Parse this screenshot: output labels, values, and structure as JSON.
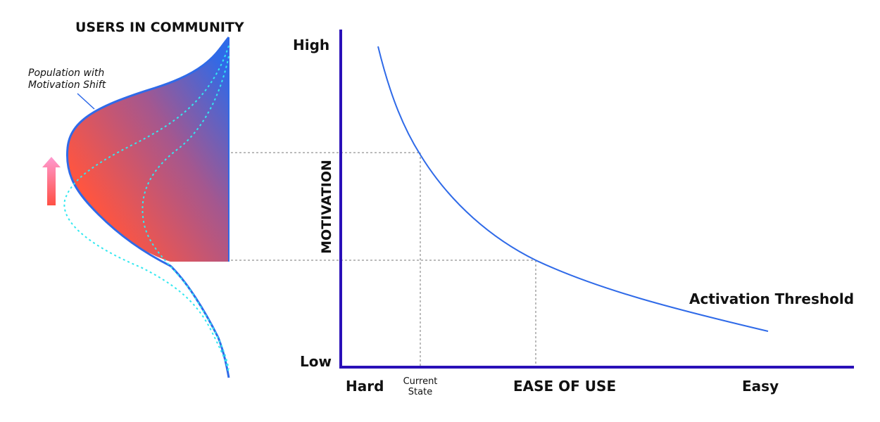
{
  "left_panel": {
    "title": "USERS IN COMMUNITY",
    "annotation_line1": "Population with",
    "annotation_line2": "Motivation Shift"
  },
  "chart": {
    "y_high_label": "High",
    "y_low_label": "Low",
    "y_axis_label": "MOTIVATION",
    "x_hard_label": "Hard",
    "x_easy_label": "Easy",
    "x_axis_label": "EASE OF USE",
    "current_state_line1": "Current",
    "current_state_line2": "State",
    "curve_label": "Activation Threshold"
  },
  "colors": {
    "axis": "#2a10b8",
    "curve": "#2f6ae8",
    "population_shift_line": "#33e8f0",
    "gradient_top": "#2f6ae8",
    "gradient_bottom": "#ff5540",
    "arrow": "#ff80b0",
    "guide_lines": "#777777"
  },
  "icons": {
    "up_arrow": "upward-shift-arrow"
  }
}
